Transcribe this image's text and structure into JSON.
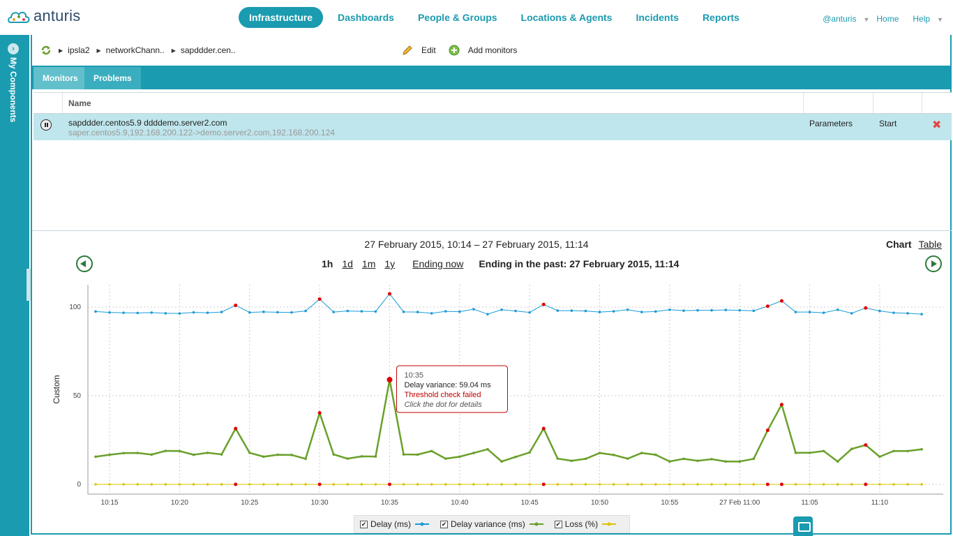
{
  "brand": {
    "name": "anturis"
  },
  "nav": {
    "items": [
      {
        "label": "Infrastructure"
      },
      {
        "label": "Dashboards"
      },
      {
        "label": "People & Groups"
      },
      {
        "label": "Locations & Agents"
      },
      {
        "label": "Incidents"
      },
      {
        "label": "Reports"
      }
    ],
    "user": "@anturis",
    "home": "Home",
    "help": "Help"
  },
  "sidebar": {
    "title": "My Components"
  },
  "breadcrumb": {
    "items": [
      "ipsla2",
      "networkChann..",
      "sapddder.cen.."
    ]
  },
  "actions": {
    "edit": "Edit",
    "add_monitors": "Add monitors"
  },
  "tabs": [
    {
      "label": "Monitors"
    },
    {
      "label": "Problems"
    }
  ],
  "table": {
    "header": {
      "name": "Name"
    },
    "row": {
      "name": "sapddder.centos5.9 ddddemo.server2.com",
      "sub": "saper.centos5.9,192.168.200.122->demo.server2.com,192.168.200.124",
      "parameters": "Parameters",
      "start": "Start"
    }
  },
  "chart_header": {
    "range": "27 February 2015, 10:14 – 27 February 2015, 11:14",
    "periods": [
      "1h",
      "1d",
      "1m",
      "1y"
    ],
    "ending_now": "Ending now",
    "ending_past": "Ending in the past: 27 February 2015, 11:14",
    "view_chart": "Chart",
    "view_table": "Table"
  },
  "tooltip": {
    "time": "10:35",
    "value": "Delay variance: 59.04 ms",
    "status": "Threshold check failed",
    "hint": "Click the dot for details"
  },
  "colors": {
    "accent": "#1a9bb0",
    "delay": "#1a9bd6",
    "variance": "#6aa02a",
    "loss": "#d9c400",
    "alert": "#e00000"
  },
  "chart_data": {
    "type": "line",
    "ylabel": "Custom",
    "ylim": [
      0,
      110
    ],
    "yticks": [
      0,
      50,
      100
    ],
    "xticks": [
      "10:15",
      "10:20",
      "10:25",
      "10:30",
      "10:35",
      "10:40",
      "10:45",
      "10:50",
      "10:55",
      "27 Feb 11:00",
      "11:05",
      "11:10"
    ],
    "x_start_minute": 14,
    "legend": [
      "Delay (ms)",
      "Delay variance (ms)",
      "Loss (%)"
    ],
    "series": [
      {
        "name": "Delay (ms)",
        "color": "#1a9bd6",
        "values": [
          97.5,
          97.0,
          96.8,
          96.7,
          96.9,
          96.5,
          96.4,
          97.0,
          96.8,
          97.2,
          101.0,
          97.0,
          97.3,
          97.1,
          97.0,
          97.8,
          104.5,
          97.2,
          97.8,
          97.6,
          97.5,
          107.5,
          97.3,
          97.2,
          96.5,
          97.6,
          97.4,
          98.8,
          96.0,
          98.5,
          97.8,
          97.0,
          101.5,
          98.0,
          98.0,
          97.8,
          97.2,
          97.6,
          98.5,
          97.2,
          97.5,
          98.5,
          98.0,
          98.2,
          98.2,
          98.4,
          98.2,
          97.9,
          100.5,
          103.5,
          97.2,
          97.2,
          96.8,
          98.5,
          96.5,
          99.5,
          97.8,
          96.8,
          96.5,
          96.0
        ],
        "alerts": [
          10,
          16,
          21,
          32,
          48,
          49,
          55
        ]
      },
      {
        "name": "Delay variance (ms)",
        "color": "#6aa02a",
        "values": [
          15.6,
          16.7,
          17.6,
          17.7,
          16.8,
          18.9,
          18.8,
          16.7,
          17.8,
          16.9,
          31.5,
          17.8,
          15.6,
          16.7,
          16.6,
          14.4,
          40.3,
          16.9,
          14.5,
          15.8,
          15.7,
          59.04,
          16.9,
          16.8,
          18.8,
          14.5,
          15.6,
          17.7,
          19.8,
          12.9,
          15.5,
          18.0,
          31.5,
          14.5,
          13.3,
          14.4,
          17.7,
          16.6,
          14.5,
          17.7,
          16.7,
          12.9,
          14.4,
          13.3,
          14.2,
          12.9,
          12.9,
          14.4,
          30.5,
          45.0,
          17.8,
          17.8,
          18.8,
          12.9,
          20.0,
          22.2,
          15.6,
          18.8,
          18.8,
          19.8
        ],
        "alerts": [
          10,
          16,
          21,
          32,
          48,
          49,
          55
        ]
      },
      {
        "name": "Loss (%)",
        "color": "#d9c400",
        "values": [
          0,
          0,
          0,
          0,
          0,
          0,
          0,
          0,
          0,
          0,
          0,
          0,
          0,
          0,
          0,
          0,
          0,
          0,
          0,
          0,
          0,
          0,
          0,
          0,
          0,
          0,
          0,
          0,
          0,
          0,
          0,
          0,
          0,
          0,
          0,
          0,
          0,
          0,
          0,
          0,
          0,
          0,
          0,
          0,
          0,
          0,
          0,
          0,
          0,
          0,
          0,
          0,
          0,
          0,
          0,
          0,
          0,
          0,
          0,
          0
        ],
        "alerts": [
          10,
          16,
          21,
          32,
          48,
          49,
          55
        ]
      }
    ]
  }
}
